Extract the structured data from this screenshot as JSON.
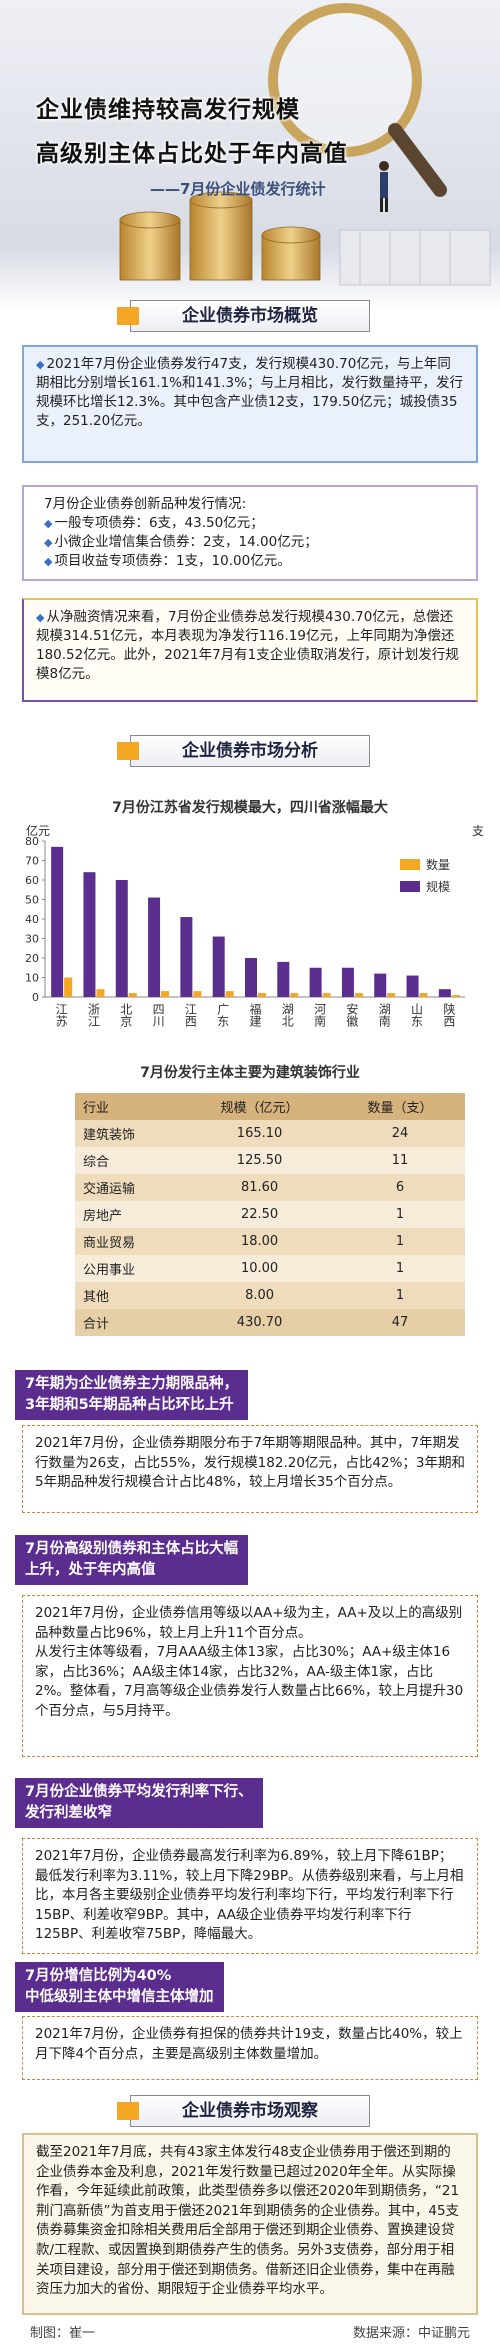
{
  "header": {
    "title_lines": [
      "企业债维持较高发行规模",
      "高级别主体占比处于年内高值"
    ],
    "subtitle": "——7月份企业债发行统计"
  },
  "overview": {
    "heading": "企业债券市场概览",
    "box1": "2021年7月份企业债券发行47支，发行规模430.70亿元，与上年同期相比分别增长161.1%和141.3%；与上月相比，发行数量持平，发行规模环比增长12.3%。其中包含产业债12支，179.50亿元；城投债35支，251.20亿元。",
    "box2": {
      "title": "7月份企业债券创新品种发行情况:",
      "items": [
        "一般专项债券：6支，43.50亿元；",
        "小微企业增信集合债券：2支，14.00亿元；",
        "项目收益专项债券：1支，10.00亿元。"
      ]
    },
    "box3": "从净融资情况来看，7月份企业债券总发行规模430.70亿元，总偿还规模314.51亿元，本月表现为净发行116.19亿元，上年同期为净偿还180.52亿元。此外，2021年7月有1支企业债取消发行，原计划发行规模8亿元。"
  },
  "analysis": {
    "heading": "企业债券市场分析"
  },
  "chart_data": {
    "type": "bar",
    "title": "7月份江苏省发行规模最大，四川省涨幅最大",
    "y_label": "亿元",
    "y2_label": "支",
    "categories": [
      "江苏",
      "浙江",
      "北京",
      "四川",
      "江西",
      "广东",
      "福建",
      "湖北",
      "河南",
      "安徽",
      "湖南",
      "山东",
      "陕西"
    ],
    "series": [
      {
        "name": "规模",
        "color": "#5b2d8e",
        "values": [
          77,
          64,
          60,
          51,
          41,
          31,
          20,
          18,
          15,
          15,
          12,
          11,
          4
        ]
      },
      {
        "name": "数量",
        "color": "#f5a623",
        "values": [
          10,
          4,
          2,
          3,
          3,
          3,
          2,
          2,
          2,
          2,
          2,
          2,
          1
        ]
      }
    ],
    "legend_order": [
      "数量",
      "规模"
    ],
    "legend": "upper right",
    "ylim": [
      0,
      80
    ],
    "yticks": [
      0,
      10,
      20,
      30,
      40,
      50,
      60,
      70,
      80
    ],
    "grid": false
  },
  "table": {
    "title": "7月份发行主体主要为建筑装饰行业",
    "header": [
      "行业",
      "规模（亿元）",
      "数量（支）"
    ],
    "rows": [
      [
        "建筑装饰",
        "165.10",
        "24"
      ],
      [
        "综合",
        "125.50",
        "11"
      ],
      [
        "交通运输",
        "81.60",
        "6"
      ],
      [
        "房地产",
        "22.50",
        "1"
      ],
      [
        "商业贸易",
        "18.00",
        "1"
      ],
      [
        "公用事业",
        "10.00",
        "1"
      ],
      [
        "其他",
        "8.00",
        "1"
      ],
      [
        "合计",
        "430.70",
        "47"
      ]
    ]
  },
  "callouts": [
    {
      "title": [
        "7年期为企业债券主力期限品种，",
        "3年期和5年期品种占比环比上升"
      ],
      "paragraphs": [
        "2021年7月份，企业债券期限分布于7年期等期限品种。其中，7年期发行数量为26支，占比55%，发行规模182.20亿元，占比42%；3年期和5年期品种发行规模合计占比48%，较上月增长35个百分点。"
      ]
    },
    {
      "title": [
        "7月份高级别债券和主体占比大幅",
        "上升，处于年内高值"
      ],
      "paragraphs": [
        "2021年7月份，企业债券信用等级以AA+级为主，AA+及以上的高级别品种数量占比96%，较上月上升11个百分点。",
        "从发行主体等级看，7月AAA级主体13家，占比30%；AA+级主体16家，占比36%；AA级主体14家，占比32%，AA-级主体1家，占比2%。整体看，7月高等级企业债券发行人数量占比66%，较上月提升30个百分点，与5月持平。"
      ]
    },
    {
      "title": [
        "7月份企业债券平均发行利率下行、",
        "发行利差收窄"
      ],
      "paragraphs": [
        "2021年7月份，企业债券最高发行利率为6.89%，较上月下降61BP；最低发行利率为3.11%，较上月下降29BP。从债券级别来看，与上月相比，本月各主要级别企业债券平均发行利率均下行，平均发行利率下行15BP、利差收窄9BP。其中，AA级企业债券平均发行利率下行125BP、利差收窄75BP，降幅最大。"
      ]
    },
    {
      "title": [
        "7月份增信比例为40%",
        "中低级别主体中增信主体增加"
      ],
      "paragraphs": [
        "2021年7月份，企业债券有担保的债券共计19支，数量占比40%，较上月下降4个百分点，主要是高级别主体数量增加。"
      ]
    }
  ],
  "observation": {
    "heading": "企业债券市场观察",
    "text": "截至2021年7月底，共有43家主体发行48支企业债券用于偿还到期的企业债券本金及利息，2021年发行数量已超过2020年全年。从实际操作看，今年延续此前政策，此类型债券多以偿还2020年到期债务，“21荆门高新债”为首支用于偿还2021年到期债务的企业债券。其中，45支债券募集资金扣除相关费用后全部用于偿还到期企业债券、置换建设贷款/工程款、或因置换到期债券产生的债务。另外3支债券，部分用于相关项目建设，部分用于偿还到期债务。借新还旧企业债券，集中在再融资压力加大的省份、期限短于企业债券平均水平。"
  },
  "footer": {
    "author": "制图：崔一",
    "source": "数据来源：中证鹏元"
  }
}
